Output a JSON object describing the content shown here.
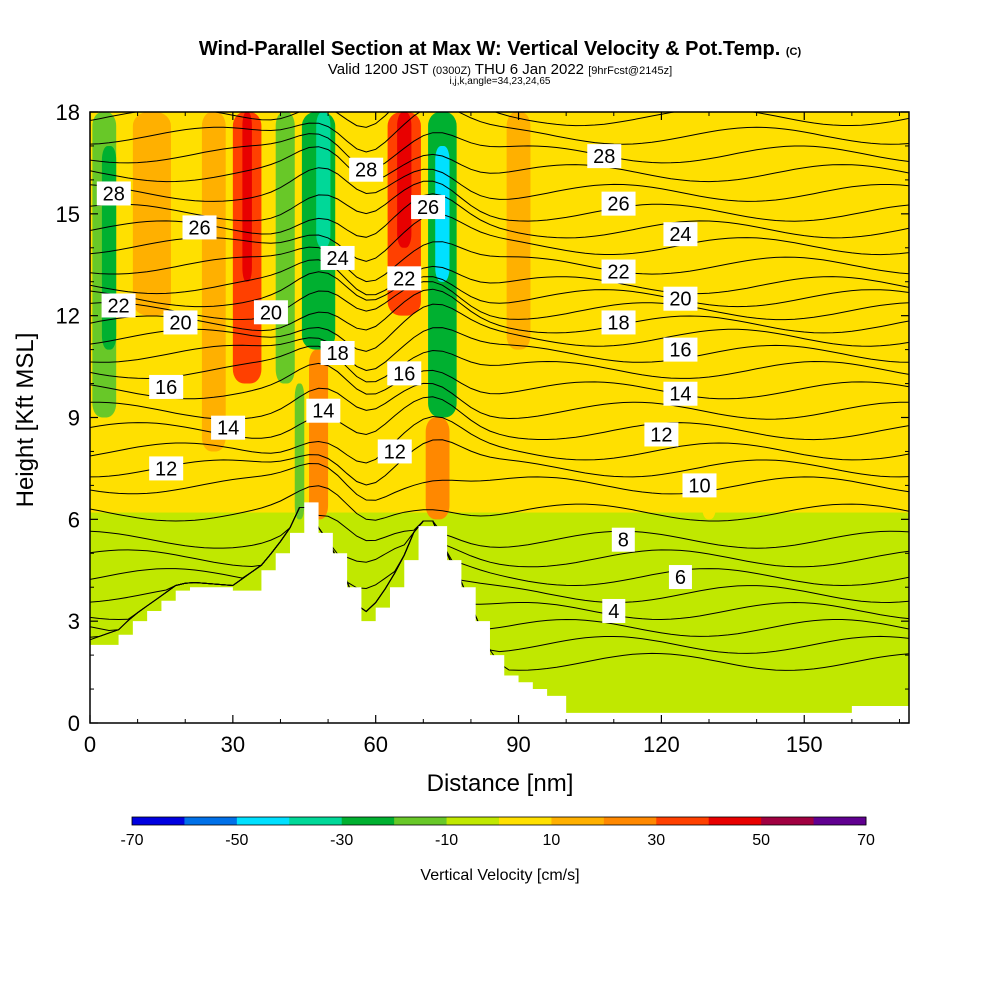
{
  "header": {
    "title_main": "Wind-Parallel Section at Max W: Vertical Velocity & Pot.Temp.",
    "title_mark": "(C)",
    "valid_prefix": "Valid 1200 JST",
    "valid_utc": "(0300Z)",
    "valid_date": "THU 6 Jan 2022",
    "forecast": "[9hrFcst@2145z]",
    "indices": "i,j,k,angle=34,23,24,65"
  },
  "colors": {
    "levels": [
      "#0000e0",
      "#0070e8",
      "#00e0ff",
      "#00d898",
      "#00b030",
      "#68c828",
      "#c0e800",
      "#ffe000",
      "#ffb000",
      "#ff8800",
      "#ff4000",
      "#e80000",
      "#a00040",
      "#600090"
    ],
    "terrain": "#ffffff",
    "contour": "#000000"
  },
  "chart_data": {
    "type": "heatmap",
    "xlabel": "Distance [nm]",
    "ylabel": "Height [Kft MSL]",
    "xlim": [
      0,
      172
    ],
    "ylim": [
      0,
      18
    ],
    "xticks": [
      0,
      30,
      60,
      90,
      120,
      150
    ],
    "yticks": [
      0,
      3,
      6,
      9,
      12,
      15,
      18
    ],
    "colorbar": {
      "label": "Vertical Velocity [cm/s]",
      "bounds": [
        -70,
        -60,
        -50,
        -40,
        -30,
        -20,
        -10,
        0,
        10,
        20,
        30,
        40,
        50,
        60,
        70
      ],
      "tick_labels": [
        "-70",
        "-50",
        "-30",
        "-10",
        "10",
        "30",
        "50",
        "70"
      ]
    },
    "vertical_velocity_columns": [
      {
        "x": 3,
        "w": 5,
        "y0": 9,
        "y1": 18,
        "value": -15
      },
      {
        "x": 4,
        "w": 3,
        "y0": 11,
        "y1": 17,
        "value": -25
      },
      {
        "x": 13,
        "w": 8,
        "y0": 12,
        "y1": 18,
        "value": 18
      },
      {
        "x": 26,
        "w": 5,
        "y0": 8,
        "y1": 18,
        "value": 12
      },
      {
        "x": 33,
        "w": 6,
        "y0": 10,
        "y1": 18,
        "value": 35
      },
      {
        "x": 33,
        "w": 2,
        "y0": 13,
        "y1": 18,
        "value": 45
      },
      {
        "x": 41,
        "w": 4,
        "y0": 10,
        "y1": 18,
        "value": -12
      },
      {
        "x": 48,
        "w": 7,
        "y0": 11,
        "y1": 18,
        "value": -22
      },
      {
        "x": 49,
        "w": 3,
        "y0": 14,
        "y1": 18,
        "value": -32
      },
      {
        "x": 48,
        "w": 4,
        "y0": 6,
        "y1": 11,
        "value": 25
      },
      {
        "x": 44,
        "w": 2,
        "y0": 6,
        "y1": 10,
        "value": -15
      },
      {
        "x": 66,
        "w": 7,
        "y0": 12,
        "y1": 18,
        "value": 35
      },
      {
        "x": 66,
        "w": 3,
        "y0": 14,
        "y1": 18,
        "value": 45
      },
      {
        "x": 74,
        "w": 6,
        "y0": 9,
        "y1": 18,
        "value": -28
      },
      {
        "x": 74,
        "w": 3,
        "y0": 13,
        "y1": 17,
        "value": -45
      },
      {
        "x": 73,
        "w": 5,
        "y0": 6,
        "y1": 9,
        "value": 25
      },
      {
        "x": 90,
        "w": 5,
        "y0": 11,
        "y1": 18,
        "value": 15
      },
      {
        "x": 130,
        "w": 3,
        "y0": 6,
        "y1": 9,
        "value": 6
      }
    ],
    "terrain_profile": {
      "x": [
        0,
        6,
        9,
        12,
        15,
        18,
        21,
        30,
        36,
        39,
        42,
        45,
        48,
        51,
        54,
        57,
        60,
        63,
        66,
        69,
        72,
        75,
        78,
        81,
        84,
        87,
        90,
        93,
        96,
        100,
        130,
        150,
        160,
        172
      ],
      "height": [
        2.3,
        2.6,
        3.0,
        3.3,
        3.6,
        3.9,
        4.0,
        3.9,
        4.5,
        5.0,
        5.6,
        6.5,
        5.6,
        5.0,
        4.0,
        3.0,
        3.4,
        4.0,
        4.8,
        5.8,
        5.8,
        4.8,
        4.0,
        3.0,
        2.0,
        1.4,
        1.2,
        1.0,
        0.8,
        0.3,
        0.3,
        0.3,
        0.5,
        0.6
      ]
    },
    "theta_contours": [
      {
        "value": 4,
        "label_x": 110,
        "label_y": 3.3
      },
      {
        "value": 6,
        "label_x": 124,
        "label_y": 4.3
      },
      {
        "value": 8,
        "label_x": 112,
        "label_y": 5.4
      },
      {
        "value": 10,
        "label_x": 128,
        "label_y": 7.0
      },
      {
        "value": 12,
        "label_x": 16,
        "label_y": 7.5
      },
      {
        "value": 12,
        "label_x": 64,
        "label_y": 8.0
      },
      {
        "value": 12,
        "label_x": 120,
        "label_y": 8.5
      },
      {
        "value": 14,
        "label_x": 29,
        "label_y": 8.7
      },
      {
        "value": 14,
        "label_x": 49,
        "label_y": 9.2
      },
      {
        "value": 14,
        "label_x": 124,
        "label_y": 9.7
      },
      {
        "value": 16,
        "label_x": 16,
        "label_y": 9.9
      },
      {
        "value": 16,
        "label_x": 66,
        "label_y": 10.3
      },
      {
        "value": 16,
        "label_x": 124,
        "label_y": 11.0
      },
      {
        "value": 18,
        "label_x": 52,
        "label_y": 10.9
      },
      {
        "value": 18,
        "label_x": 111,
        "label_y": 11.8
      },
      {
        "value": 20,
        "label_x": 19,
        "label_y": 11.8
      },
      {
        "value": 20,
        "label_x": 38,
        "label_y": 12.1
      },
      {
        "value": 20,
        "label_x": 124,
        "label_y": 12.5
      },
      {
        "value": 22,
        "label_x": 6,
        "label_y": 12.3
      },
      {
        "value": 22,
        "label_x": 66,
        "label_y": 13.1
      },
      {
        "value": 22,
        "label_x": 111,
        "label_y": 13.3
      },
      {
        "value": 24,
        "label_x": 52,
        "label_y": 13.7
      },
      {
        "value": 24,
        "label_x": 124,
        "label_y": 14.4
      },
      {
        "value": 26,
        "label_x": 23,
        "label_y": 14.6
      },
      {
        "value": 26,
        "label_x": 71,
        "label_y": 15.2
      },
      {
        "value": 26,
        "label_x": 111,
        "label_y": 15.3
      },
      {
        "value": 28,
        "label_x": 5,
        "label_y": 15.6
      },
      {
        "value": 28,
        "label_x": 58,
        "label_y": 16.3
      },
      {
        "value": 28,
        "label_x": 108,
        "label_y": 16.7
      }
    ]
  }
}
